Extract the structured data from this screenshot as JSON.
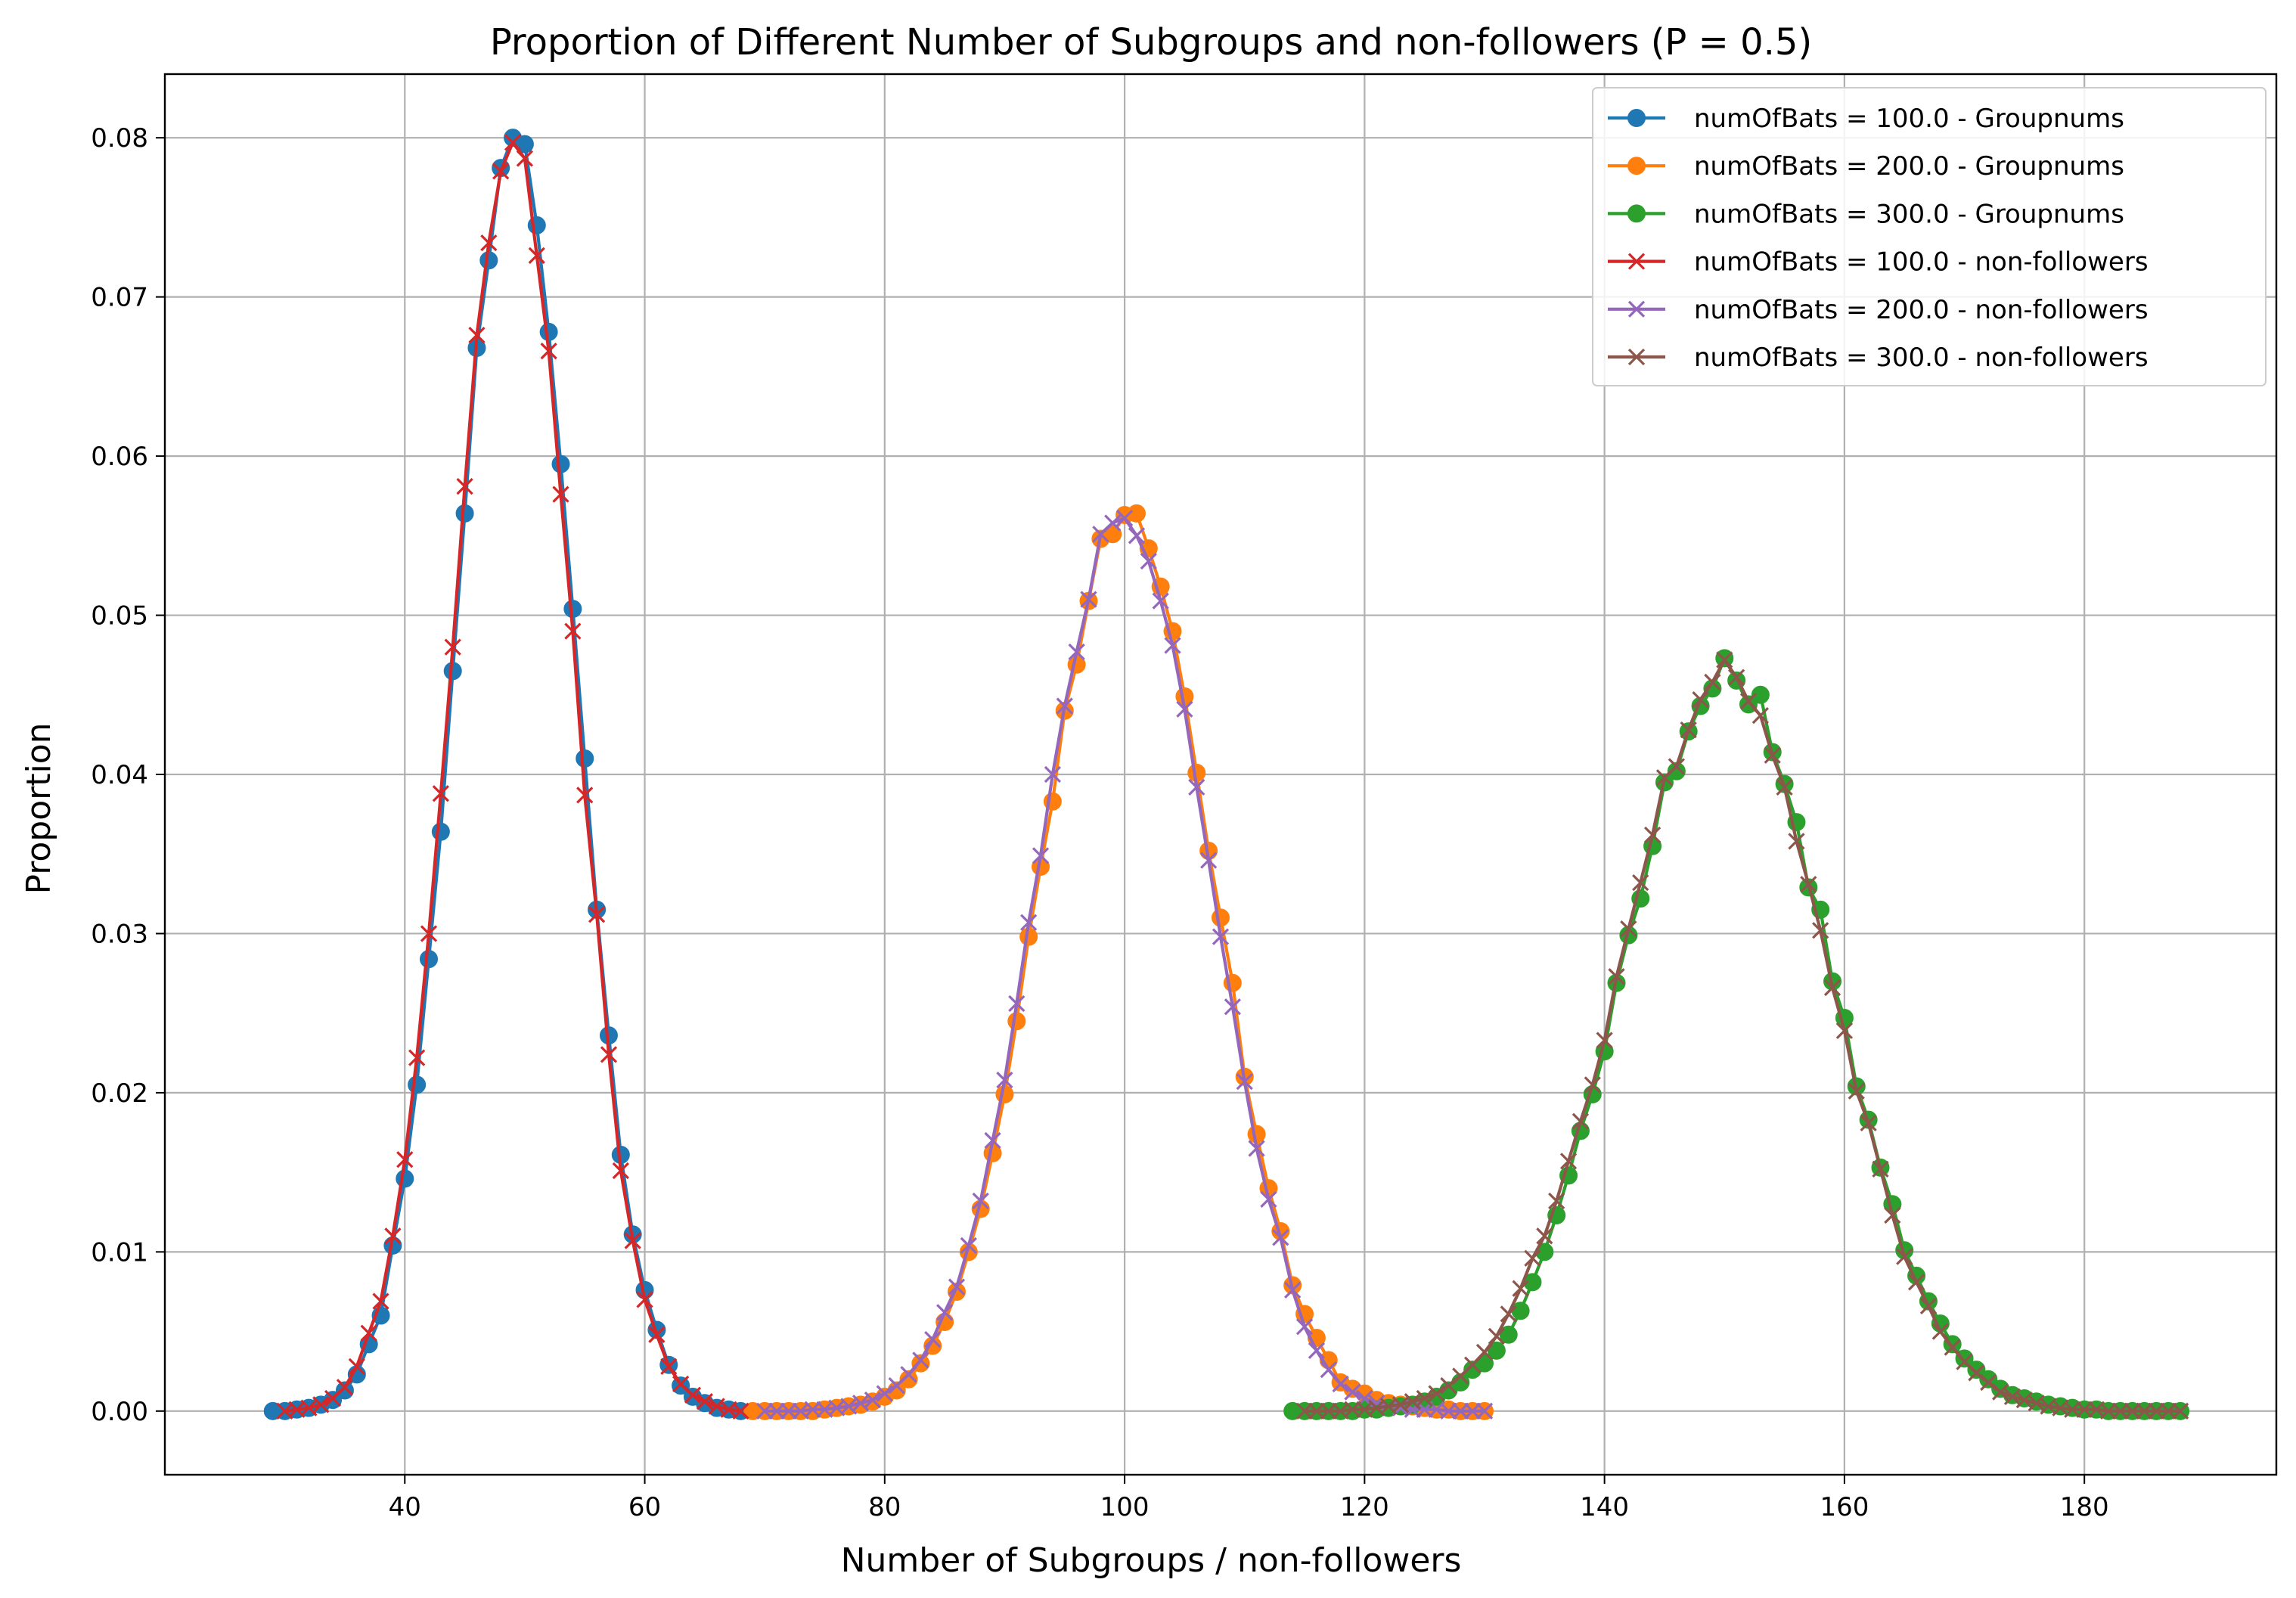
{
  "chart_data": {
    "type": "line",
    "title": "Proportion of Different Number of Subgroups and non-followers (P = 0.5)",
    "xlabel": "Number of Subgroups / non-followers",
    "ylabel": "Proportion",
    "xlim": [
      20,
      196
    ],
    "ylim": [
      -0.004,
      0.084
    ],
    "xticks": [
      40,
      60,
      80,
      100,
      120,
      140,
      160,
      180
    ],
    "yticks": [
      0.0,
      0.01,
      0.02,
      0.03,
      0.04,
      0.05,
      0.06,
      0.07,
      0.08
    ],
    "xtick_labels": [
      "40",
      "60",
      "80",
      "100",
      "120",
      "140",
      "160",
      "180"
    ],
    "ytick_labels": [
      "0.00",
      "0.01",
      "0.02",
      "0.03",
      "0.04",
      "0.05",
      "0.06",
      "0.07",
      "0.08"
    ],
    "grid": true,
    "legend_position": "top-right",
    "series": [
      {
        "name": "numOfBats = 100.0 - Groupnums",
        "color": "#1f77b4",
        "marker": "circle",
        "x": [
          29,
          30,
          31,
          32,
          33,
          34,
          35,
          36,
          37,
          38,
          39,
          40,
          41,
          42,
          43,
          44,
          45,
          46,
          47,
          48,
          49,
          50,
          51,
          52,
          53,
          54,
          55,
          56,
          57,
          58,
          59,
          60,
          61,
          62,
          63,
          64,
          65,
          66,
          67,
          68
        ],
        "y": [
          0.0,
          0.0,
          0.0001,
          0.0002,
          0.0004,
          0.0007,
          0.0013,
          0.0023,
          0.0042,
          0.006,
          0.0104,
          0.0146,
          0.0205,
          0.0284,
          0.0364,
          0.0465,
          0.0564,
          0.0668,
          0.0723,
          0.0781,
          0.08,
          0.0796,
          0.0745,
          0.0678,
          0.0595,
          0.0504,
          0.041,
          0.0315,
          0.0236,
          0.0161,
          0.0111,
          0.0076,
          0.0051,
          0.0029,
          0.0016,
          0.0009,
          0.0005,
          0.0002,
          0.0001,
          0.0
        ]
      },
      {
        "name": "numOfBats = 200.0 - Groupnums",
        "color": "#ff7f0e",
        "marker": "circle",
        "x": [
          69,
          70,
          71,
          72,
          73,
          74,
          75,
          76,
          77,
          78,
          79,
          80,
          81,
          82,
          83,
          84,
          85,
          86,
          87,
          88,
          89,
          90,
          91,
          92,
          93,
          94,
          95,
          96,
          97,
          98,
          99,
          100,
          101,
          102,
          103,
          104,
          105,
          106,
          107,
          108,
          109,
          110,
          111,
          112,
          113,
          114,
          115,
          116,
          117,
          118,
          119,
          120,
          121,
          122,
          123,
          124,
          125,
          126,
          127,
          128,
          129,
          130
        ],
        "y": [
          0.0,
          0.0,
          0.0,
          0.0,
          0.0,
          0.0,
          0.0001,
          0.0002,
          0.0003,
          0.0004,
          0.0006,
          0.0009,
          0.0013,
          0.002,
          0.003,
          0.0041,
          0.0056,
          0.0075,
          0.01,
          0.0127,
          0.0162,
          0.0199,
          0.0245,
          0.0298,
          0.0342,
          0.0383,
          0.044,
          0.0469,
          0.0509,
          0.0548,
          0.0551,
          0.0563,
          0.0564,
          0.0542,
          0.0518,
          0.049,
          0.0449,
          0.0401,
          0.0352,
          0.031,
          0.0269,
          0.021,
          0.0174,
          0.014,
          0.0113,
          0.0079,
          0.0061,
          0.0046,
          0.0032,
          0.0018,
          0.0014,
          0.0011,
          0.0007,
          0.0005,
          0.0004,
          0.0003,
          0.0002,
          0.0001,
          0.0001,
          0.0,
          0.0,
          0.0
        ]
      },
      {
        "name": "numOfBats = 300.0 - Groupnums",
        "color": "#2ca02c",
        "marker": "circle",
        "x": [
          114,
          115,
          116,
          117,
          118,
          119,
          120,
          121,
          122,
          123,
          124,
          125,
          126,
          127,
          128,
          129,
          130,
          131,
          132,
          133,
          134,
          135,
          136,
          137,
          138,
          139,
          140,
          141,
          142,
          143,
          144,
          145,
          146,
          147,
          148,
          149,
          150,
          151,
          152,
          153,
          154,
          155,
          156,
          157,
          158,
          159,
          160,
          161,
          162,
          163,
          164,
          165,
          166,
          167,
          168,
          169,
          170,
          171,
          172,
          173,
          174,
          175,
          176,
          177,
          178,
          179,
          180,
          181,
          182,
          183,
          184,
          185,
          186,
          187,
          188
        ],
        "y": [
          0.0,
          0.0,
          0.0,
          0.0,
          0.0,
          0.0,
          0.0001,
          0.0001,
          0.0002,
          0.0003,
          0.0004,
          0.0006,
          0.0009,
          0.0013,
          0.0018,
          0.0026,
          0.003,
          0.0038,
          0.0048,
          0.0063,
          0.0081,
          0.01,
          0.0123,
          0.0148,
          0.0176,
          0.0199,
          0.0226,
          0.0269,
          0.0299,
          0.0322,
          0.0355,
          0.0395,
          0.0402,
          0.0427,
          0.0443,
          0.0454,
          0.0473,
          0.0459,
          0.0444,
          0.045,
          0.0414,
          0.0394,
          0.037,
          0.0329,
          0.0315,
          0.027,
          0.0247,
          0.0204,
          0.0183,
          0.0153,
          0.013,
          0.0101,
          0.0085,
          0.0069,
          0.0055,
          0.0042,
          0.0033,
          0.0026,
          0.002,
          0.0014,
          0.001,
          0.0008,
          0.0006,
          0.0004,
          0.0003,
          0.0002,
          0.0001,
          0.0001,
          0.0,
          0.0,
          0.0,
          0.0,
          0.0,
          0.0,
          0.0
        ]
      },
      {
        "name": "numOfBats = 100.0 - non-followers",
        "color": "#d62728",
        "marker": "x",
        "x": [
          30,
          31,
          32,
          33,
          34,
          35,
          36,
          37,
          38,
          39,
          40,
          41,
          42,
          43,
          44,
          45,
          46,
          47,
          48,
          49,
          50,
          51,
          52,
          53,
          54,
          55,
          56,
          57,
          58,
          59,
          60,
          61,
          62,
          63,
          64,
          65,
          66,
          67,
          68
        ],
        "y": [
          0.0,
          0.0001,
          0.0002,
          0.0004,
          0.0008,
          0.0015,
          0.0028,
          0.0049,
          0.0069,
          0.011,
          0.0158,
          0.0222,
          0.03,
          0.0388,
          0.048,
          0.0581,
          0.0676,
          0.0734,
          0.0779,
          0.0797,
          0.0787,
          0.0726,
          0.0666,
          0.0576,
          0.049,
          0.0387,
          0.0312,
          0.0224,
          0.0151,
          0.0107,
          0.007,
          0.0048,
          0.0028,
          0.0017,
          0.001,
          0.0006,
          0.0003,
          0.0001,
          0.0
        ]
      },
      {
        "name": "numOfBats = 200.0 - non-followers",
        "color": "#9467bd",
        "marker": "x",
        "x": [
          70,
          71,
          72,
          73,
          74,
          75,
          76,
          77,
          78,
          79,
          80,
          81,
          82,
          83,
          84,
          85,
          86,
          87,
          88,
          89,
          90,
          91,
          92,
          93,
          94,
          95,
          96,
          97,
          98,
          99,
          100,
          101,
          102,
          103,
          104,
          105,
          106,
          107,
          108,
          109,
          110,
          111,
          112,
          113,
          114,
          115,
          116,
          117,
          118,
          119,
          120,
          121,
          122,
          123,
          124,
          125,
          126,
          127,
          128,
          129,
          130
        ],
        "y": [
          0.0,
          0.0,
          0.0,
          0.0,
          0.0001,
          0.0001,
          0.0002,
          0.0003,
          0.0005,
          0.0007,
          0.0011,
          0.0016,
          0.0023,
          0.0032,
          0.0045,
          0.0062,
          0.0078,
          0.0104,
          0.0132,
          0.017,
          0.0208,
          0.0256,
          0.0307,
          0.0349,
          0.04,
          0.0443,
          0.0477,
          0.051,
          0.0551,
          0.0558,
          0.0561,
          0.055,
          0.0534,
          0.0509,
          0.0481,
          0.0441,
          0.0392,
          0.0346,
          0.0298,
          0.0254,
          0.0207,
          0.0165,
          0.0133,
          0.0109,
          0.0076,
          0.0053,
          0.0038,
          0.0026,
          0.0017,
          0.0012,
          0.0008,
          0.0005,
          0.0003,
          0.0002,
          0.0001,
          0.0001,
          0.0001,
          0.0,
          0.0,
          0.0,
          0.0
        ]
      },
      {
        "name": "numOfBats = 300.0 - non-followers",
        "color": "#8c564b",
        "marker": "x",
        "x": [
          115,
          116,
          117,
          118,
          119,
          120,
          121,
          122,
          123,
          124,
          125,
          126,
          127,
          128,
          129,
          130,
          131,
          132,
          133,
          134,
          135,
          136,
          137,
          138,
          139,
          140,
          141,
          142,
          143,
          144,
          145,
          146,
          147,
          148,
          149,
          150,
          151,
          152,
          153,
          154,
          155,
          156,
          157,
          158,
          159,
          160,
          161,
          162,
          163,
          164,
          165,
          166,
          167,
          168,
          169,
          170,
          171,
          172,
          173,
          174,
          175,
          176,
          177,
          178,
          179,
          180,
          181,
          182,
          183,
          184,
          185,
          186,
          187,
          188
        ],
        "y": [
          0.0,
          0.0,
          0.0,
          0.0,
          0.0001,
          0.0001,
          0.0002,
          0.0003,
          0.0004,
          0.0006,
          0.0008,
          0.0011,
          0.0016,
          0.0022,
          0.0029,
          0.0037,
          0.0047,
          0.0061,
          0.0077,
          0.0096,
          0.011,
          0.0132,
          0.0157,
          0.0182,
          0.0205,
          0.0233,
          0.0273,
          0.0303,
          0.0332,
          0.0362,
          0.0398,
          0.0405,
          0.0428,
          0.0447,
          0.0458,
          0.0472,
          0.0461,
          0.0446,
          0.0437,
          0.0412,
          0.0392,
          0.0358,
          0.0331,
          0.0302,
          0.0266,
          0.0239,
          0.0201,
          0.0181,
          0.0152,
          0.0123,
          0.0097,
          0.0081,
          0.0066,
          0.005,
          0.004,
          0.0031,
          0.0024,
          0.0018,
          0.0012,
          0.0009,
          0.0007,
          0.0005,
          0.0003,
          0.0002,
          0.0001,
          0.0001,
          0.0001,
          0.0,
          0.0,
          0.0,
          0.0,
          0.0,
          0.0,
          0.0
        ]
      }
    ]
  }
}
